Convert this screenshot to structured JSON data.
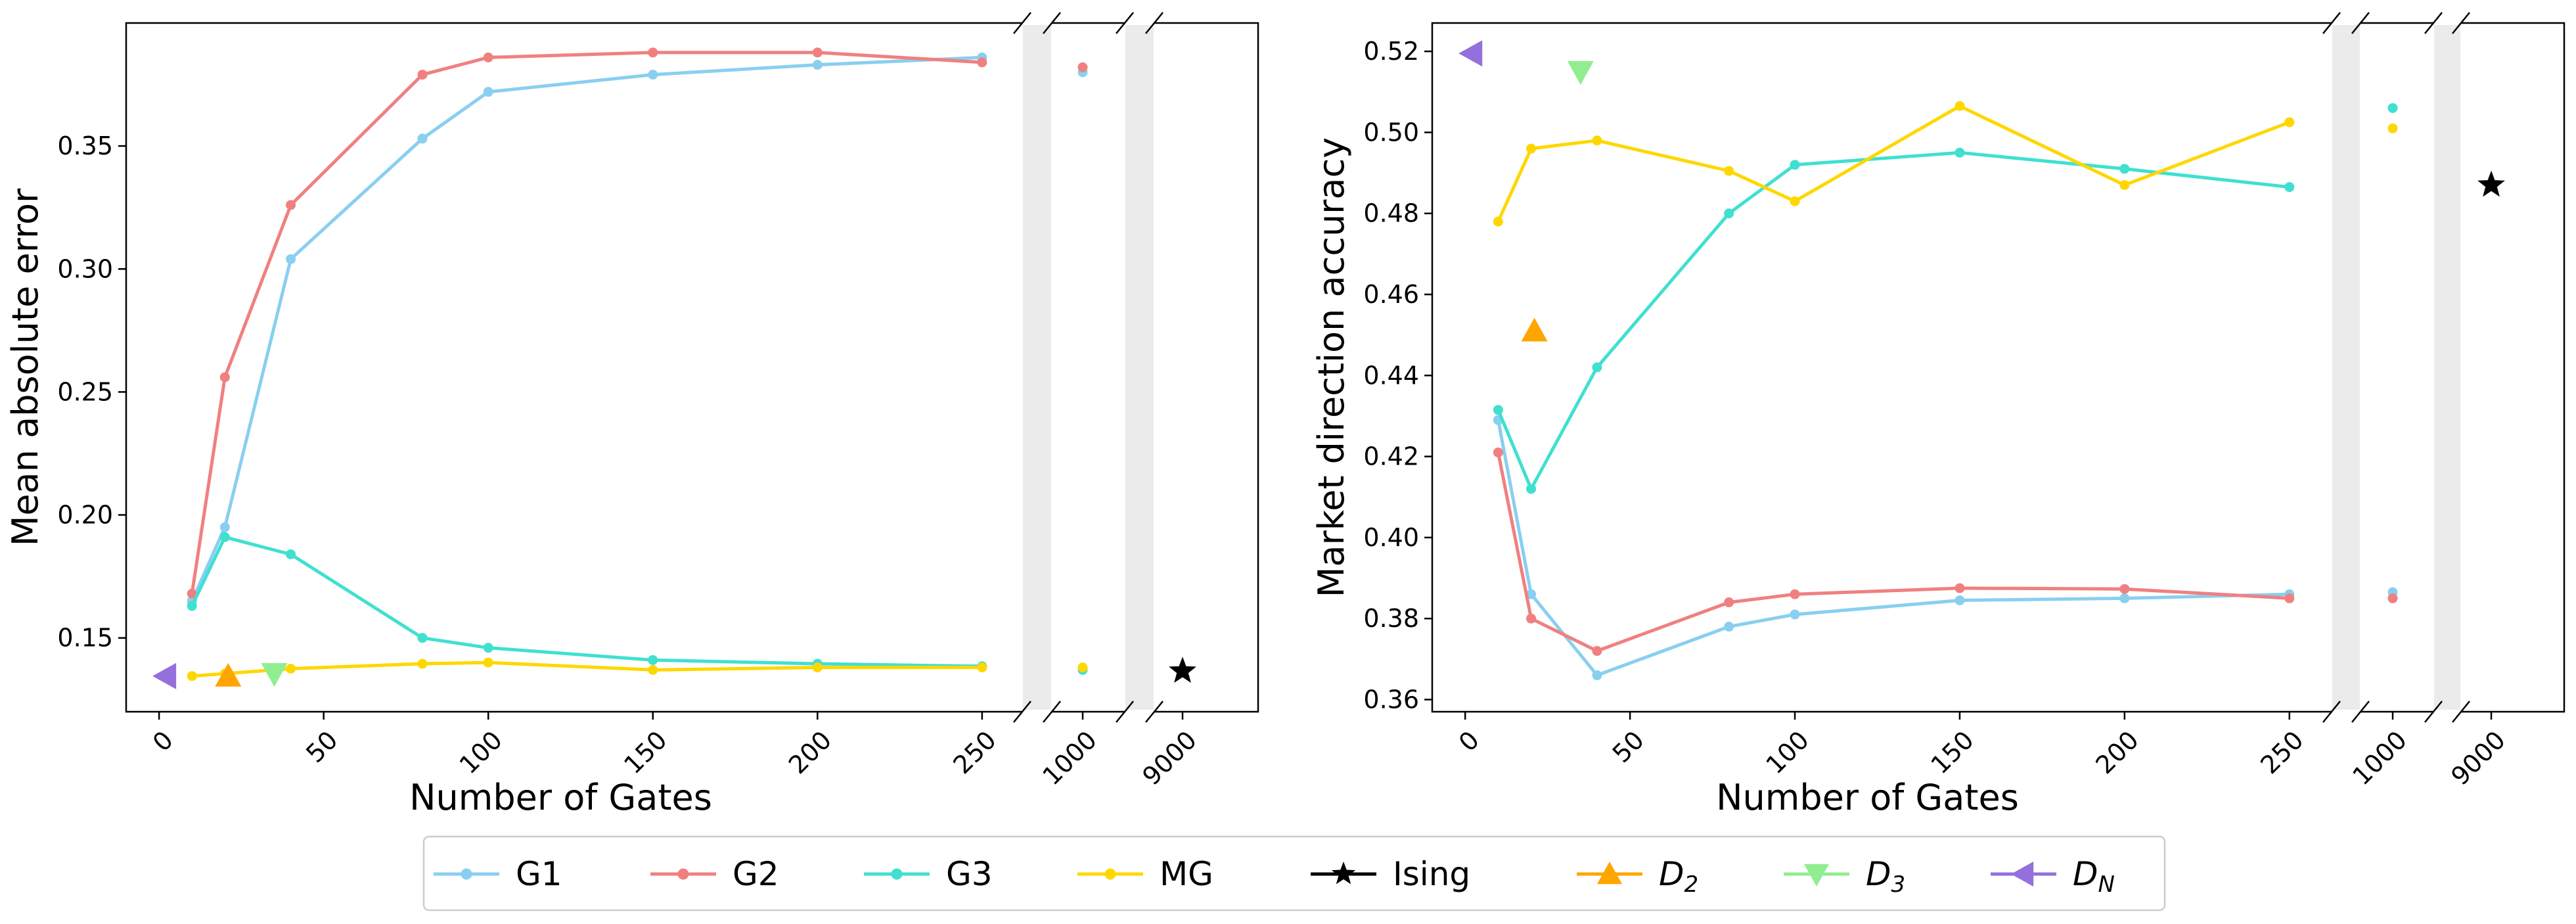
{
  "chart_data": [
    {
      "type": "line",
      "panel": "left",
      "xlabel": "Number of Gates",
      "ylabel": "Mean absolute error",
      "x_ticks": [
        "0",
        "50",
        "100",
        "150",
        "200",
        "250",
        "1000",
        "9000"
      ],
      "y_ticks": [
        "0.15",
        "0.20",
        "0.25",
        "0.30",
        "0.35"
      ],
      "ylim": [
        0.12,
        0.4
      ],
      "x_axis_breaks": [
        250,
        1000
      ],
      "series": [
        {
          "name": "G1",
          "color": "#89cff0",
          "x": [
            10,
            20,
            40,
            80,
            100,
            150,
            200,
            250
          ],
          "y": [
            0.165,
            0.195,
            0.304,
            0.353,
            0.372,
            0.379,
            0.383,
            0.386
          ],
          "extra_x": [
            1000
          ],
          "extra_y": [
            0.38
          ]
        },
        {
          "name": "G2",
          "color": "#f08080",
          "x": [
            10,
            20,
            40,
            80,
            100,
            150,
            200,
            250
          ],
          "y": [
            0.168,
            0.256,
            0.326,
            0.379,
            0.386,
            0.388,
            0.388,
            0.384
          ],
          "extra_x": [
            1000
          ],
          "extra_y": [
            0.382
          ]
        },
        {
          "name": "G3",
          "color": "#40e0d0",
          "x": [
            10,
            20,
            40,
            80,
            100,
            150,
            200,
            250
          ],
          "y": [
            0.163,
            0.191,
            0.184,
            0.15,
            0.146,
            0.141,
            0.1395,
            0.1385
          ],
          "extra_x": [
            1000
          ],
          "extra_y": [
            0.137
          ]
        },
        {
          "name": "MG",
          "color": "#ffd700",
          "x": [
            10,
            20,
            40,
            80,
            100,
            150,
            200,
            250
          ],
          "y": [
            0.1345,
            0.1355,
            0.1375,
            0.1395,
            0.14,
            0.137,
            0.138,
            0.138
          ],
          "extra_x": [
            1000
          ],
          "extra_y": [
            0.138
          ]
        }
      ],
      "markers": [
        {
          "name": "Ising",
          "shape": "star",
          "color": "#000000",
          "x": 9000,
          "y": 0.1365
        },
        {
          "name": "D2",
          "shape": "triangle-up",
          "color": "#ffa500",
          "x": 21,
          "y": 0.1345
        },
        {
          "name": "D3",
          "shape": "triangle-down",
          "color": "#90ee90",
          "x": 35,
          "y": 0.1355
        },
        {
          "name": "DN",
          "shape": "triangle-left",
          "color": "#9370db",
          "x": 2,
          "y": 0.1345
        }
      ]
    },
    {
      "type": "line",
      "panel": "right",
      "xlabel": "Number of Gates",
      "ylabel": "Market direction accuracy",
      "x_ticks": [
        "0",
        "50",
        "100",
        "150",
        "200",
        "250",
        "1000",
        "9000"
      ],
      "y_ticks": [
        "0.36",
        "0.38",
        "0.40",
        "0.42",
        "0.44",
        "0.46",
        "0.48",
        "0.50",
        "0.52"
      ],
      "ylim": [
        0.357,
        0.527
      ],
      "x_axis_breaks": [
        250,
        1000
      ],
      "series": [
        {
          "name": "G1",
          "color": "#89cff0",
          "x": [
            10,
            20,
            40,
            80,
            100,
            150,
            200,
            250
          ],
          "y": [
            0.429,
            0.386,
            0.366,
            0.378,
            0.381,
            0.3845,
            0.385,
            0.386
          ],
          "extra_x": [
            1000
          ],
          "extra_y": [
            0.3865
          ]
        },
        {
          "name": "G2",
          "color": "#f08080",
          "x": [
            10,
            20,
            40,
            80,
            100,
            150,
            200,
            250
          ],
          "y": [
            0.421,
            0.38,
            0.372,
            0.384,
            0.386,
            0.3875,
            0.3873,
            0.385
          ],
          "extra_x": [
            1000
          ],
          "extra_y": [
            0.385
          ]
        },
        {
          "name": "G3",
          "color": "#40e0d0",
          "x": [
            10,
            20,
            40,
            80,
            100,
            150,
            200,
            250
          ],
          "y": [
            0.4315,
            0.412,
            0.442,
            0.48,
            0.492,
            0.495,
            0.491,
            0.4865
          ],
          "extra_x": [
            1000
          ],
          "extra_y": [
            0.506
          ]
        },
        {
          "name": "MG",
          "color": "#ffd700",
          "x": [
            10,
            20,
            40,
            80,
            100,
            150,
            200,
            250
          ],
          "y": [
            0.478,
            0.496,
            0.498,
            0.4905,
            0.483,
            0.5065,
            0.487,
            0.5025
          ],
          "extra_x": [
            1000
          ],
          "extra_y": [
            0.501
          ]
        }
      ],
      "markers": [
        {
          "name": "Ising",
          "shape": "star",
          "color": "#000000",
          "x": 9000,
          "y": 0.487
        },
        {
          "name": "D2",
          "shape": "triangle-up",
          "color": "#ffa500",
          "x": 21,
          "y": 0.451
        },
        {
          "name": "D3",
          "shape": "triangle-down",
          "color": "#90ee90",
          "x": 35,
          "y": 0.515
        },
        {
          "name": "DN",
          "shape": "triangle-left",
          "color": "#9370db",
          "x": 2,
          "y": 0.5195
        }
      ]
    }
  ],
  "legend": {
    "placement": "bottom-center",
    "entries": [
      {
        "label": "G1",
        "sub": "",
        "kind": "line",
        "shape": "circle",
        "color": "#89cff0"
      },
      {
        "label": "G2",
        "sub": "",
        "kind": "line",
        "shape": "circle",
        "color": "#f08080"
      },
      {
        "label": "G3",
        "sub": "",
        "kind": "line",
        "shape": "circle",
        "color": "#40e0d0"
      },
      {
        "label": "MG",
        "sub": "",
        "kind": "line",
        "shape": "circle",
        "color": "#ffd700"
      },
      {
        "label": "Ising",
        "sub": "",
        "kind": "line",
        "shape": "star",
        "color": "#000000"
      },
      {
        "label": "D",
        "sub": "2",
        "kind": "line",
        "shape": "triangle-up",
        "color": "#ffa500"
      },
      {
        "label": "D",
        "sub": "3",
        "kind": "line",
        "shape": "triangle-down",
        "color": "#90ee90"
      },
      {
        "label": "D",
        "sub": "N",
        "kind": "line",
        "shape": "triangle-left",
        "color": "#9370db"
      }
    ]
  }
}
